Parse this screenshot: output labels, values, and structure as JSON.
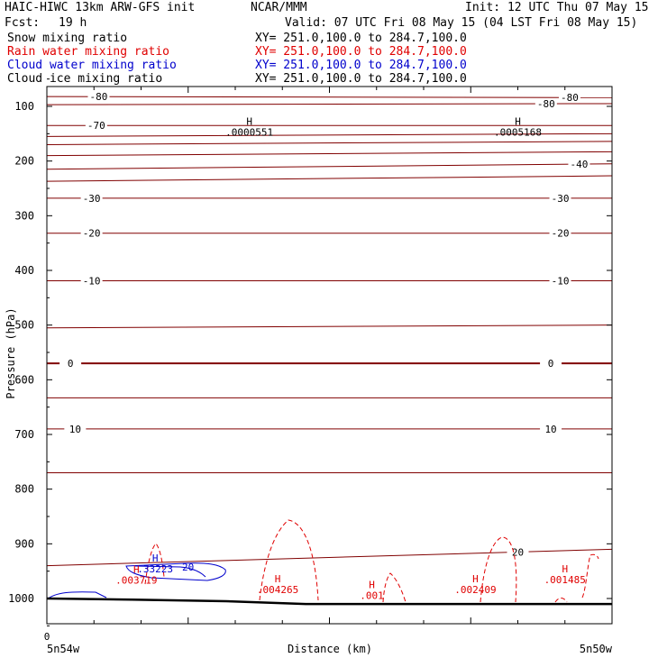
{
  "header": {
    "title": "HAIC-HIWC 13km ARW-GFS init",
    "org": "NCAR/MMM",
    "init": "Init: 12 UTC Thu 07 May 15",
    "fcst_label": "Fcst:",
    "fcst_value": "19 h",
    "valid": "Valid: 07 UTC Fri 08 May 15 (04 LST Fri 08 May 15)"
  },
  "fields": [
    {
      "name": "Snow mixing ratio",
      "xy": "XY= 251.0,100.0 to 284.7,100.0",
      "color": "#000000"
    },
    {
      "name": "Rain water mixing ratio",
      "xy": "XY= 251.0,100.0 to 284.7,100.0",
      "color": "#e00000"
    },
    {
      "name": "Cloud water mixing ratio",
      "xy": "XY= 251.0,100.0 to 284.7,100.0",
      "color": "#0000cc"
    },
    {
      "name": "Cloud ice mixing ratio",
      "xy": "XY= 251.0,100.0 to 284.7,100.0",
      "color": "#000000"
    }
  ],
  "colors": {
    "temperature": "#800000",
    "rain": "#e00000",
    "cloud_water": "#0000cc",
    "axis": "#000000"
  },
  "chart_data": {
    "type": "cross-section",
    "ylabel": "Pressure (hPa)",
    "xlabel": "Distance (km)",
    "x_ticks": [
      {
        "x": 0,
        "label": "0"
      }
    ],
    "x_end_labels": [
      "5n54w",
      "5n50w"
    ],
    "x_range": [
      0,
      12
    ],
    "y_range_hpa": [
      1050,
      50
    ],
    "y_ticks": [
      100,
      200,
      300,
      400,
      500,
      600,
      700,
      800,
      900,
      1000
    ],
    "temperature_contours": [
      {
        "level": -80,
        "p": [
          82,
          84
        ],
        "labels": [
          [
            1.1,
            "-80"
          ],
          [
            11.1,
            "-80"
          ]
        ]
      },
      {
        "level": -80,
        "p": [
          97,
          95
        ],
        "labels": [
          [
            10.6,
            "-80"
          ]
        ]
      },
      {
        "level": -70,
        "p": [
          135,
          135
        ],
        "labels": [
          [
            1.05,
            "-70"
          ]
        ]
      },
      {
        "level": null,
        "p": [
          155,
          150
        ],
        "labels": []
      },
      {
        "level": null,
        "p": [
          170,
          164
        ],
        "labels": []
      },
      {
        "level": null,
        "p": [
          190,
          183
        ],
        "labels": []
      },
      {
        "level": -40,
        "p": [
          215,
          205
        ],
        "labels": [
          [
            11.3,
            "-40"
          ]
        ]
      },
      {
        "level": null,
        "p": [
          237,
          227
        ],
        "labels": []
      },
      {
        "level": -30,
        "p": [
          268,
          268
        ],
        "labels": [
          [
            0.95,
            "-30"
          ],
          [
            10.9,
            "-30"
          ]
        ]
      },
      {
        "level": -20,
        "p": [
          332,
          332
        ],
        "labels": [
          [
            0.95,
            "-20"
          ],
          [
            10.9,
            "-20"
          ]
        ]
      },
      {
        "level": -10,
        "p": [
          419,
          419
        ],
        "labels": [
          [
            0.95,
            "-10"
          ],
          [
            10.9,
            "-10"
          ]
        ]
      },
      {
        "level": null,
        "p": [
          505,
          500
        ],
        "labels": []
      },
      {
        "level": 0,
        "p": [
          570,
          570
        ],
        "labels": [
          [
            0.5,
            "0"
          ],
          [
            10.7,
            "0"
          ]
        ]
      },
      {
        "level": null,
        "p": [
          633,
          633
        ],
        "labels": []
      },
      {
        "level": 10,
        "p": [
          690,
          690
        ],
        "labels": [
          [
            0.6,
            "10"
          ],
          [
            10.7,
            "10"
          ]
        ]
      },
      {
        "level": null,
        "p": [
          770,
          770
        ],
        "labels": []
      },
      {
        "level": 20,
        "p": [
          940,
          910
        ],
        "labels": [
          [
            10.0,
            "20"
          ]
        ]
      }
    ],
    "surface_pressure_hpa": [
      [
        0,
        1000
      ],
      [
        1.8,
        1002
      ],
      [
        3.8,
        1005
      ],
      [
        5.5,
        1010
      ],
      [
        7.5,
        1010
      ],
      [
        9.5,
        1010
      ],
      [
        12,
        1010
      ]
    ],
    "maxima": [
      {
        "series": "cloud_ice",
        "x": 4.3,
        "p": 144,
        "value": ".0000551"
      },
      {
        "series": "cloud_ice",
        "x": 10.0,
        "p": 144,
        "value": ".0005168"
      },
      {
        "series": "cloud_water",
        "x": 2.3,
        "p": 942,
        "value": ".33223"
      },
      {
        "series": "rain",
        "x": 1.9,
        "p": 963,
        "value": ".003719"
      },
      {
        "series": "rain",
        "x": 4.9,
        "p": 980,
        "value": ".004265"
      },
      {
        "series": "rain",
        "x": 6.9,
        "p": 991,
        "value": ".001"
      },
      {
        "series": "rain",
        "x": 9.1,
        "p": 980,
        "value": ".002409"
      },
      {
        "series": "rain",
        "x": 11.0,
        "p": 962,
        "value": ".001485"
      }
    ],
    "cloud_water_contour_label": "20"
  }
}
